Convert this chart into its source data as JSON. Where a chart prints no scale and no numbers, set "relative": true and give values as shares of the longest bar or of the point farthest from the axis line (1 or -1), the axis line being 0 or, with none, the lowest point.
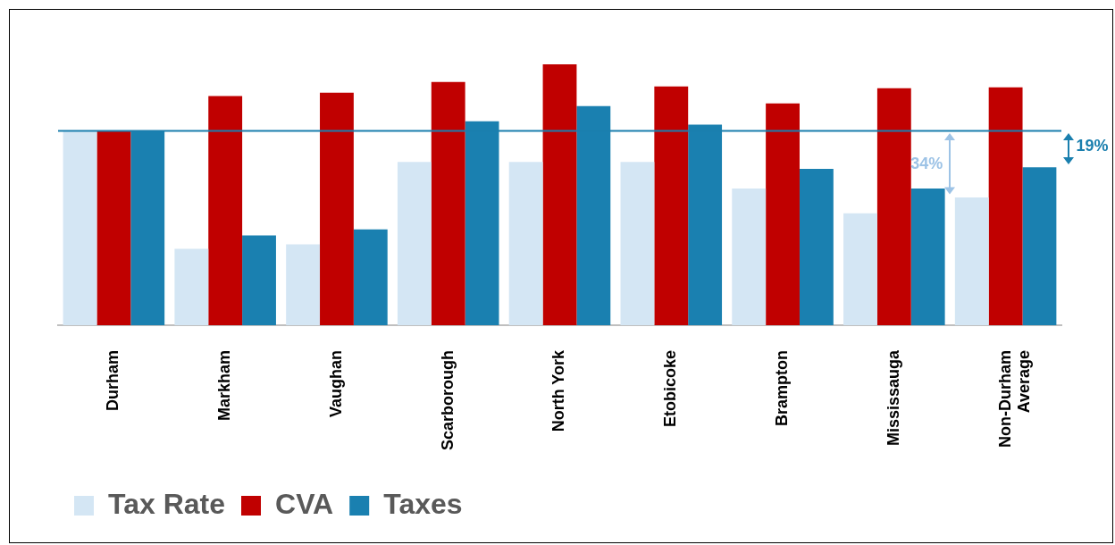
{
  "chart_data": {
    "type": "bar",
    "relative": true,
    "categories": [
      "Durham",
      "Markham",
      "Vaughan",
      "Scarborough",
      "North York",
      "Etobicoke",
      "Brampton",
      "Mississauga",
      "Non-Durham Average"
    ],
    "series": [
      {
        "name": "Tax Rate",
        "color": "#d4e6f4",
        "values": [
          0.745,
          0.293,
          0.31,
          0.626,
          0.626,
          0.626,
          0.524,
          0.429,
          0.49
        ]
      },
      {
        "name": "CVA",
        "color": "#c00000",
        "values": [
          0.745,
          0.878,
          0.891,
          0.932,
          1,
          0.915,
          0.85,
          0.908,
          0.912
        ]
      },
      {
        "name": "Taxes",
        "color": "#1a80b0",
        "values": [
          0.745,
          0.344,
          0.367,
          0.782,
          0.84,
          0.769,
          0.599,
          0.524,
          0.605
        ]
      }
    ],
    "ref_lines": [
      {
        "axis": "y",
        "value": 0.745,
        "color": "#1a7fae"
      }
    ],
    "annotations": [
      "34%",
      "19%"
    ],
    "legend": "bottom left",
    "grid": false
  }
}
